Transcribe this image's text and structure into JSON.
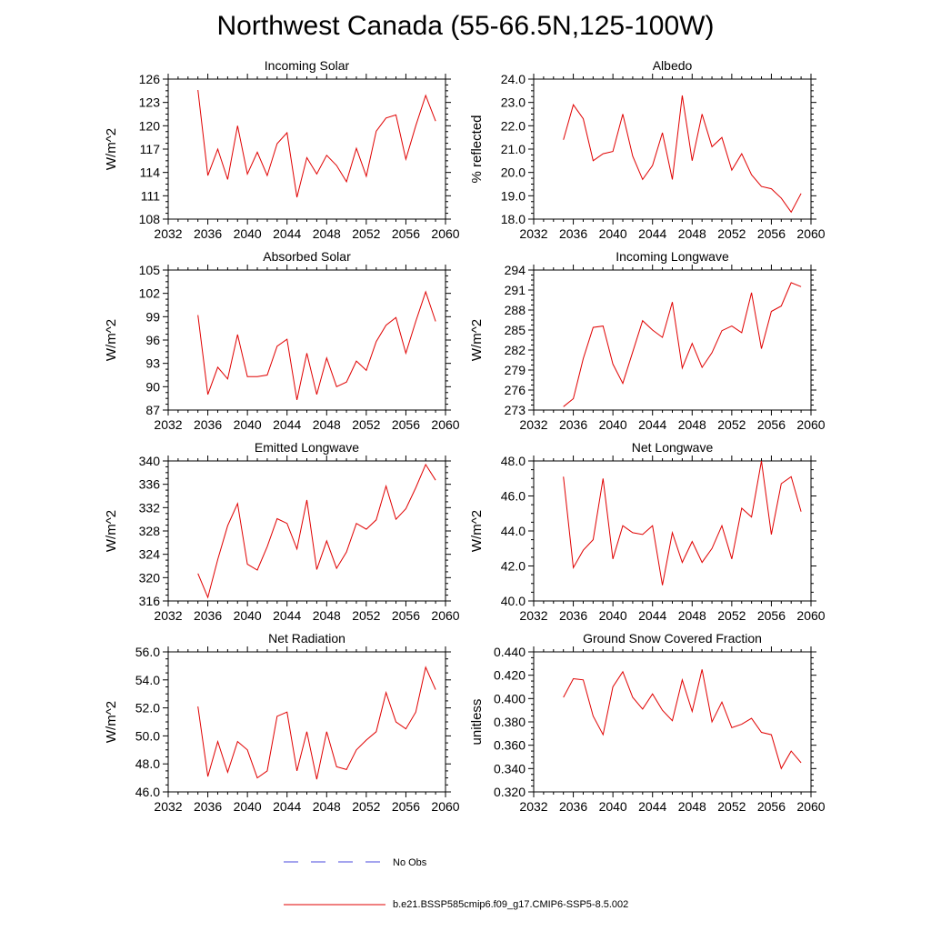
{
  "title": "Northwest Canada (55-66.5N,125-100W)",
  "legend": {
    "items": [
      {
        "label": "No Obs",
        "color": "#4a4adc",
        "style": "dashed"
      },
      {
        "label": "b.e21.BSSP585cmip6.f09_g17.CMIP6-SSP5-8.5.002",
        "color": "#e00000",
        "style": "solid"
      }
    ]
  },
  "colors": {
    "series": "#e00000",
    "axis": "#000000"
  },
  "chart_data": [
    {
      "type": "line",
      "title": "Incoming Solar",
      "xlabel": "",
      "ylabel": "W/m^2",
      "xlim": [
        2032,
        2060
      ],
      "ylim": [
        108,
        126
      ],
      "xticks": [
        2032,
        2036,
        2040,
        2044,
        2048,
        2052,
        2056,
        2060
      ],
      "yticks": [
        "108",
        "111",
        "114",
        "117",
        "120",
        "123",
        "126"
      ],
      "x": [
        2035,
        2036,
        2037,
        2038,
        2039,
        2040,
        2041,
        2042,
        2043,
        2044,
        2045,
        2046,
        2047,
        2048,
        2049,
        2050,
        2051,
        2052,
        2053,
        2054,
        2055,
        2056,
        2057,
        2058,
        2059
      ],
      "series": [
        {
          "name": "b.e21.BSSP585cmip6.f09_g17.CMIP6-SSP5-8.5.002",
          "values": [
            124.6,
            113.6,
            117.0,
            113.1,
            120.0,
            113.8,
            116.6,
            113.6,
            117.7,
            119.1,
            110.8,
            115.9,
            113.8,
            116.2,
            114.9,
            112.8,
            117.1,
            113.5,
            119.3,
            121.0,
            121.4,
            115.7,
            120.0,
            123.9,
            120.6
          ]
        }
      ]
    },
    {
      "type": "line",
      "title": "Albedo",
      "xlabel": "",
      "ylabel": "% reflected",
      "xlim": [
        2032,
        2060
      ],
      "ylim": [
        18.0,
        24.0
      ],
      "xticks": [
        2032,
        2036,
        2040,
        2044,
        2048,
        2052,
        2056,
        2060
      ],
      "yticks": [
        "18.0",
        "19.0",
        "20.0",
        "21.0",
        "22.0",
        "23.0",
        "24.0"
      ],
      "x": [
        2035,
        2036,
        2037,
        2038,
        2039,
        2040,
        2041,
        2042,
        2043,
        2044,
        2045,
        2046,
        2047,
        2048,
        2049,
        2050,
        2051,
        2052,
        2053,
        2054,
        2055,
        2056,
        2057,
        2058,
        2059
      ],
      "series": [
        {
          "name": "b.e21.BSSP585cmip6.f09_g17.CMIP6-SSP5-8.5.002",
          "values": [
            21.4,
            22.9,
            22.3,
            20.5,
            20.8,
            20.9,
            22.5,
            20.7,
            19.7,
            20.3,
            21.7,
            19.7,
            23.3,
            20.5,
            22.5,
            21.1,
            21.5,
            20.1,
            20.8,
            19.9,
            19.4,
            19.3,
            18.9,
            18.3,
            19.1
          ]
        }
      ]
    },
    {
      "type": "line",
      "title": "Absorbed Solar",
      "xlabel": "",
      "ylabel": "W/m^2",
      "xlim": [
        2032,
        2060
      ],
      "ylim": [
        87,
        105
      ],
      "xticks": [
        2032,
        2036,
        2040,
        2044,
        2048,
        2052,
        2056,
        2060
      ],
      "yticks": [
        "87",
        "90",
        "93",
        "96",
        "99",
        "102",
        "105"
      ],
      "x": [
        2035,
        2036,
        2037,
        2038,
        2039,
        2040,
        2041,
        2042,
        2043,
        2044,
        2045,
        2046,
        2047,
        2048,
        2049,
        2050,
        2051,
        2052,
        2053,
        2054,
        2055,
        2056,
        2057,
        2058,
        2059
      ],
      "series": [
        {
          "name": "b.e21.BSSP585cmip6.f09_g17.CMIP6-SSP5-8.5.002",
          "values": [
            99.2,
            89.0,
            92.5,
            91.0,
            96.7,
            91.3,
            91.3,
            91.5,
            95.2,
            96.1,
            88.3,
            94.3,
            89.0,
            93.7,
            90.0,
            90.6,
            93.3,
            92.1,
            95.8,
            97.9,
            98.9,
            94.3,
            98.4,
            102.2,
            98.4
          ]
        }
      ]
    },
    {
      "type": "line",
      "title": "Incoming Longwave",
      "xlabel": "",
      "ylabel": "W/m^2",
      "xlim": [
        2032,
        2060
      ],
      "ylim": [
        273,
        294
      ],
      "xticks": [
        2032,
        2036,
        2040,
        2044,
        2048,
        2052,
        2056,
        2060
      ],
      "yticks": [
        "273",
        "276",
        "279",
        "282",
        "285",
        "288",
        "291",
        "294"
      ],
      "x": [
        2035,
        2036,
        2037,
        2038,
        2039,
        2040,
        2041,
        2042,
        2043,
        2044,
        2045,
        2046,
        2047,
        2048,
        2049,
        2050,
        2051,
        2052,
        2053,
        2054,
        2055,
        2056,
        2057,
        2058,
        2059
      ],
      "series": [
        {
          "name": "b.e21.BSSP585cmip6.f09_g17.CMIP6-SSP5-8.5.002",
          "values": [
            273.5,
            274.7,
            280.7,
            285.4,
            285.6,
            279.9,
            277.0,
            281.7,
            286.4,
            285.0,
            283.9,
            289.2,
            279.3,
            283.0,
            279.4,
            281.6,
            284.9,
            285.6,
            284.6,
            290.6,
            282.2,
            287.8,
            288.6,
            292.1,
            291.5
          ]
        }
      ]
    },
    {
      "type": "line",
      "title": "Emitted Longwave",
      "xlabel": "",
      "ylabel": "W/m^2",
      "xlim": [
        2032,
        2060
      ],
      "ylim": [
        316,
        340
      ],
      "xticks": [
        2032,
        2036,
        2040,
        2044,
        2048,
        2052,
        2056,
        2060
      ],
      "yticks": [
        "316",
        "320",
        "324",
        "328",
        "332",
        "336",
        "340"
      ],
      "x": [
        2035,
        2036,
        2037,
        2038,
        2039,
        2040,
        2041,
        2042,
        2043,
        2044,
        2045,
        2046,
        2047,
        2048,
        2049,
        2050,
        2051,
        2052,
        2053,
        2054,
        2055,
        2056,
        2057,
        2058,
        2059
      ],
      "series": [
        {
          "name": "b.e21.BSSP585cmip6.f09_g17.CMIP6-SSP5-8.5.002",
          "values": [
            320.7,
            316.6,
            323.1,
            328.9,
            332.7,
            322.3,
            321.3,
            325.3,
            330.1,
            329.3,
            324.9,
            333.3,
            321.4,
            326.3,
            321.6,
            324.4,
            329.3,
            328.3,
            329.9,
            335.7,
            330.0,
            331.8,
            335.4,
            339.4,
            336.7
          ]
        }
      ]
    },
    {
      "type": "line",
      "title": "Net Longwave",
      "xlabel": "",
      "ylabel": "W/m^2",
      "xlim": [
        2032,
        2060
      ],
      "ylim": [
        40.0,
        48.0
      ],
      "xticks": [
        2032,
        2036,
        2040,
        2044,
        2048,
        2052,
        2056,
        2060
      ],
      "yticks": [
        "40.0",
        "42.0",
        "44.0",
        "46.0",
        "48.0"
      ],
      "x": [
        2035,
        2036,
        2037,
        2038,
        2039,
        2040,
        2041,
        2042,
        2043,
        2044,
        2045,
        2046,
        2047,
        2048,
        2049,
        2050,
        2051,
        2052,
        2053,
        2054,
        2055,
        2056,
        2057,
        2058,
        2059
      ],
      "series": [
        {
          "name": "b.e21.BSSP585cmip6.f09_g17.CMIP6-SSP5-8.5.002",
          "values": [
            47.1,
            41.9,
            42.9,
            43.5,
            47.0,
            42.4,
            44.3,
            43.9,
            43.8,
            44.3,
            40.9,
            43.9,
            42.2,
            43.4,
            42.2,
            43.0,
            44.3,
            42.4,
            45.3,
            44.8,
            48.0,
            43.8,
            46.7,
            47.1,
            45.1
          ]
        }
      ]
    },
    {
      "type": "line",
      "title": "Net Radiation",
      "xlabel": "",
      "ylabel": "W/m^2",
      "xlim": [
        2032,
        2060
      ],
      "ylim": [
        46.0,
        56.0
      ],
      "xticks": [
        2032,
        2036,
        2040,
        2044,
        2048,
        2052,
        2056,
        2060
      ],
      "yticks": [
        "46.0",
        "48.0",
        "50.0",
        "52.0",
        "54.0",
        "56.0"
      ],
      "x": [
        2035,
        2036,
        2037,
        2038,
        2039,
        2040,
        2041,
        2042,
        2043,
        2044,
        2045,
        2046,
        2047,
        2048,
        2049,
        2050,
        2051,
        2052,
        2053,
        2054,
        2055,
        2056,
        2057,
        2058,
        2059
      ],
      "series": [
        {
          "name": "b.e21.BSSP585cmip6.f09_g17.CMIP6-SSP5-8.5.002",
          "values": [
            52.1,
            47.1,
            49.6,
            47.4,
            49.6,
            49.0,
            47.0,
            47.5,
            51.4,
            51.7,
            47.5,
            50.3,
            46.9,
            50.3,
            47.8,
            47.6,
            49.0,
            49.7,
            50.3,
            53.1,
            51.0,
            50.5,
            51.7,
            54.9,
            53.3
          ]
        }
      ]
    },
    {
      "type": "line",
      "title": "Ground Snow Covered Fraction",
      "xlabel": "",
      "ylabel": "unitless",
      "xlim": [
        2032,
        2060
      ],
      "ylim": [
        0.32,
        0.44
      ],
      "xticks": [
        2032,
        2036,
        2040,
        2044,
        2048,
        2052,
        2056,
        2060
      ],
      "yticks": [
        "0.320",
        "0.340",
        "0.360",
        "0.380",
        "0.400",
        "0.420",
        "0.440"
      ],
      "x": [
        2035,
        2036,
        2037,
        2038,
        2039,
        2040,
        2041,
        2042,
        2043,
        2044,
        2045,
        2046,
        2047,
        2048,
        2049,
        2050,
        2051,
        2052,
        2053,
        2054,
        2055,
        2056,
        2057,
        2058,
        2059
      ],
      "series": [
        {
          "name": "b.e21.BSSP585cmip6.f09_g17.CMIP6-SSP5-8.5.002",
          "values": [
            0.401,
            0.417,
            0.416,
            0.385,
            0.369,
            0.41,
            0.423,
            0.401,
            0.391,
            0.404,
            0.39,
            0.381,
            0.416,
            0.389,
            0.425,
            0.38,
            0.397,
            0.375,
            0.378,
            0.383,
            0.371,
            0.369,
            0.34,
            0.355,
            0.345
          ]
        }
      ]
    }
  ]
}
